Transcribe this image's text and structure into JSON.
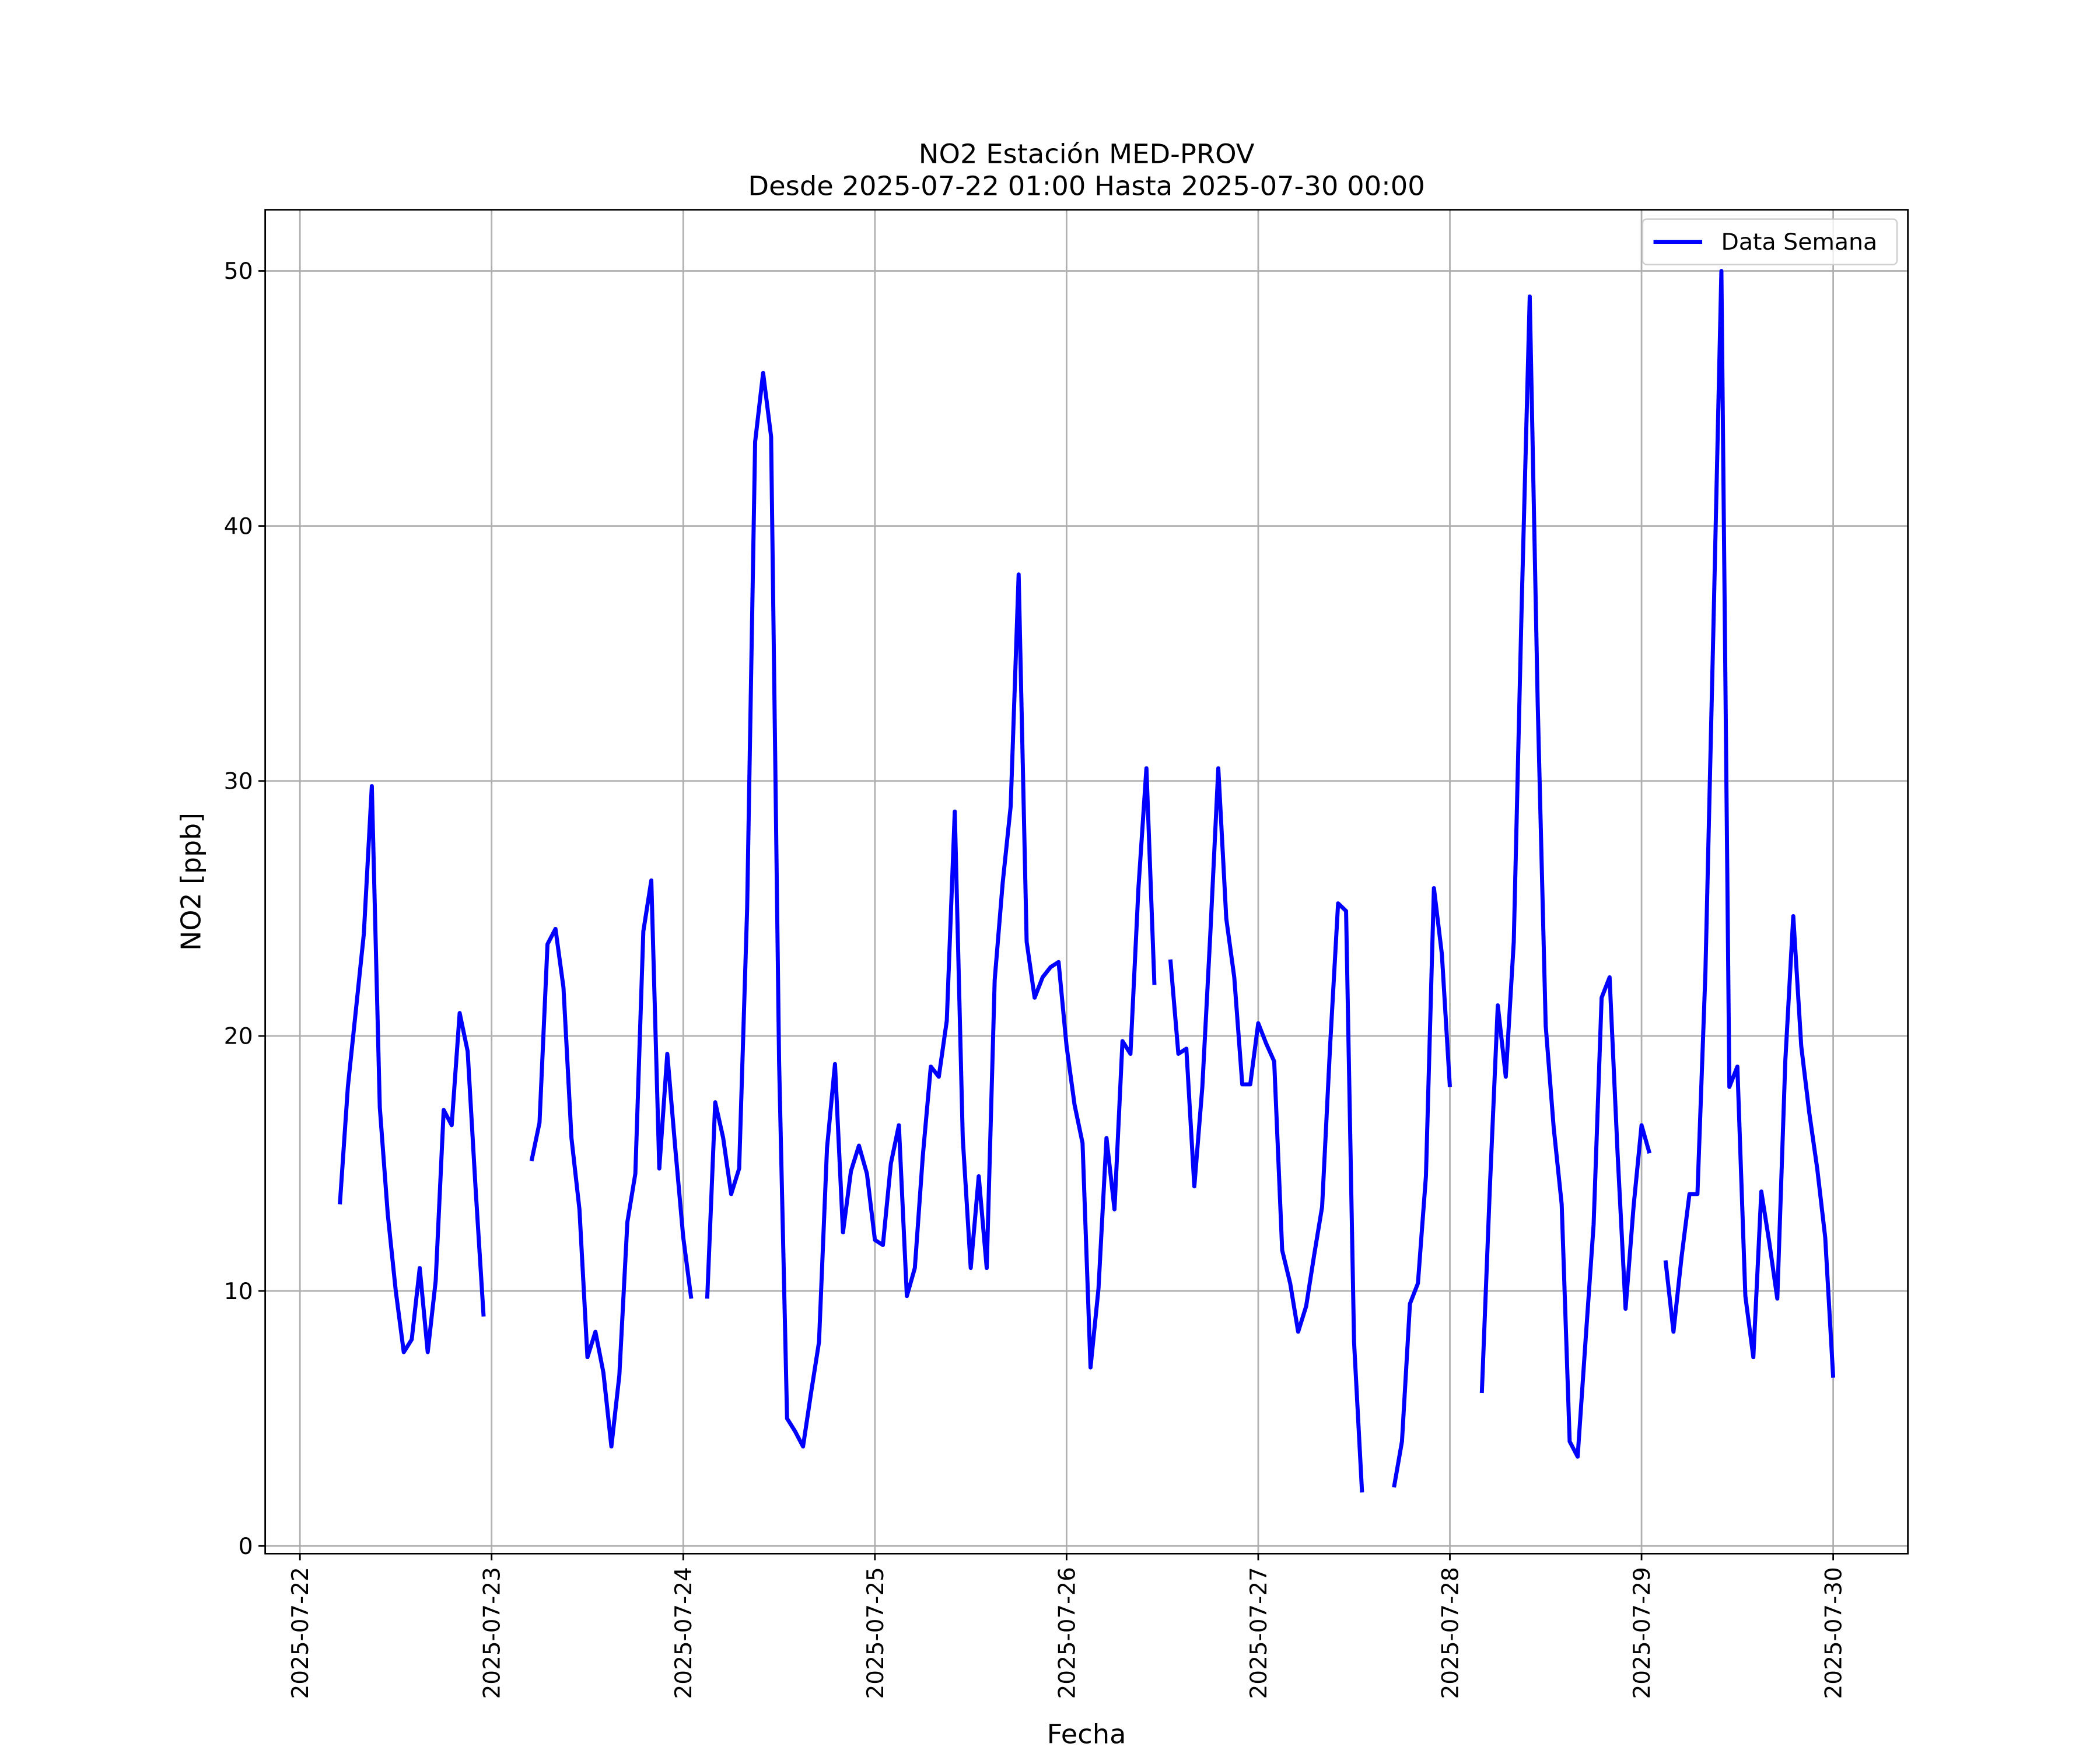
{
  "chart_data": {
    "type": "line",
    "title": "NO2 Estación MED-PROV",
    "subtitle": "Desde 2025-07-22 01:00 Hasta 2025-07-30 00:00",
    "x_label": "Fecha",
    "y_label": "NO2 [ppb]",
    "x": [
      "2025-07-22 05:00",
      "2025-07-22 06:00",
      "2025-07-22 07:00",
      "2025-07-22 08:00",
      "2025-07-22 09:00",
      "2025-07-22 10:00",
      "2025-07-22 11:00",
      "2025-07-22 12:00",
      "2025-07-22 13:00",
      "2025-07-22 14:00",
      "2025-07-22 15:00",
      "2025-07-22 16:00",
      "2025-07-22 17:00",
      "2025-07-22 18:00",
      "2025-07-22 19:00",
      "2025-07-22 20:00",
      "2025-07-22 21:00",
      "2025-07-22 22:00",
      "2025-07-22 23:00",
      "2025-07-23 00:00",
      "2025-07-23 01:00",
      "2025-07-23 02:00",
      "2025-07-23 03:00",
      "2025-07-23 04:00",
      "2025-07-23 05:00",
      "2025-07-23 06:00",
      "2025-07-23 07:00",
      "2025-07-23 08:00",
      "2025-07-23 09:00",
      "2025-07-23 10:00",
      "2025-07-23 11:00",
      "2025-07-23 12:00",
      "2025-07-23 13:00",
      "2025-07-23 14:00",
      "2025-07-23 15:00",
      "2025-07-23 16:00",
      "2025-07-23 17:00",
      "2025-07-23 18:00",
      "2025-07-23 19:00",
      "2025-07-23 20:00",
      "2025-07-23 21:00",
      "2025-07-23 22:00",
      "2025-07-23 23:00",
      "2025-07-24 00:00",
      "2025-07-24 01:00",
      "2025-07-24 02:00",
      "2025-07-24 03:00",
      "2025-07-24 04:00",
      "2025-07-24 05:00",
      "2025-07-24 06:00",
      "2025-07-24 07:00",
      "2025-07-24 08:00",
      "2025-07-24 09:00",
      "2025-07-24 10:00",
      "2025-07-24 11:00",
      "2025-07-24 12:00",
      "2025-07-24 13:00",
      "2025-07-24 14:00",
      "2025-07-24 15:00",
      "2025-07-24 16:00",
      "2025-07-24 17:00",
      "2025-07-24 18:00",
      "2025-07-24 19:00",
      "2025-07-24 20:00",
      "2025-07-24 21:00",
      "2025-07-24 22:00",
      "2025-07-24 23:00",
      "2025-07-25 00:00",
      "2025-07-25 01:00",
      "2025-07-25 02:00",
      "2025-07-25 03:00",
      "2025-07-25 04:00",
      "2025-07-25 05:00",
      "2025-07-25 06:00",
      "2025-07-25 07:00",
      "2025-07-25 08:00",
      "2025-07-25 09:00",
      "2025-07-25 10:00",
      "2025-07-25 11:00",
      "2025-07-25 12:00",
      "2025-07-25 13:00",
      "2025-07-25 14:00",
      "2025-07-25 15:00",
      "2025-07-25 16:00",
      "2025-07-25 17:00",
      "2025-07-25 18:00",
      "2025-07-25 19:00",
      "2025-07-25 20:00",
      "2025-07-25 21:00",
      "2025-07-25 22:00",
      "2025-07-25 23:00",
      "2025-07-26 00:00",
      "2025-07-26 01:00",
      "2025-07-26 02:00",
      "2025-07-26 03:00",
      "2025-07-26 04:00",
      "2025-07-26 05:00",
      "2025-07-26 06:00",
      "2025-07-26 07:00",
      "2025-07-26 08:00",
      "2025-07-26 09:00",
      "2025-07-26 10:00",
      "2025-07-26 11:00",
      "2025-07-26 12:00",
      "2025-07-26 13:00",
      "2025-07-26 14:00",
      "2025-07-26 15:00",
      "2025-07-26 16:00",
      "2025-07-26 17:00",
      "2025-07-26 18:00",
      "2025-07-26 19:00",
      "2025-07-26 20:00",
      "2025-07-26 21:00",
      "2025-07-26 22:00",
      "2025-07-26 23:00",
      "2025-07-27 00:00",
      "2025-07-27 01:00",
      "2025-07-27 02:00",
      "2025-07-27 03:00",
      "2025-07-27 04:00",
      "2025-07-27 05:00",
      "2025-07-27 06:00",
      "2025-07-27 07:00",
      "2025-07-27 08:00",
      "2025-07-27 09:00",
      "2025-07-27 10:00",
      "2025-07-27 11:00",
      "2025-07-27 12:00",
      "2025-07-27 13:00",
      "2025-07-27 14:00",
      "2025-07-27 15:00",
      "2025-07-27 16:00",
      "2025-07-27 17:00",
      "2025-07-27 18:00",
      "2025-07-27 19:00",
      "2025-07-27 20:00",
      "2025-07-27 21:00",
      "2025-07-27 22:00",
      "2025-07-27 23:00",
      "2025-07-28 00:00",
      "2025-07-28 01:00",
      "2025-07-28 02:00",
      "2025-07-28 03:00",
      "2025-07-28 04:00",
      "2025-07-28 05:00",
      "2025-07-28 06:00",
      "2025-07-28 07:00",
      "2025-07-28 08:00",
      "2025-07-28 09:00",
      "2025-07-28 10:00",
      "2025-07-28 11:00",
      "2025-07-28 12:00",
      "2025-07-28 13:00",
      "2025-07-28 14:00",
      "2025-07-28 15:00",
      "2025-07-28 16:00",
      "2025-07-28 17:00",
      "2025-07-28 18:00",
      "2025-07-28 19:00",
      "2025-07-28 20:00",
      "2025-07-28 21:00",
      "2025-07-28 22:00",
      "2025-07-28 23:00",
      "2025-07-29 00:00",
      "2025-07-29 01:00",
      "2025-07-29 02:00",
      "2025-07-29 03:00",
      "2025-07-29 04:00",
      "2025-07-29 05:00",
      "2025-07-29 06:00",
      "2025-07-29 07:00",
      "2025-07-29 08:00",
      "2025-07-29 09:00",
      "2025-07-29 10:00",
      "2025-07-29 11:00",
      "2025-07-29 12:00",
      "2025-07-29 13:00",
      "2025-07-29 14:00",
      "2025-07-29 15:00",
      "2025-07-29 16:00",
      "2025-07-29 17:00",
      "2025-07-29 18:00",
      "2025-07-29 19:00",
      "2025-07-29 20:00",
      "2025-07-29 21:00",
      "2025-07-29 22:00",
      "2025-07-29 23:00",
      "2025-07-30 00:00"
    ],
    "series": [
      {
        "name": "Data Semana",
        "color": "#0000ff",
        "values": [
          13.4,
          18,
          21,
          24,
          29.8,
          17.2,
          13,
          10,
          7.6,
          8.1,
          10.9,
          7.6,
          10.4,
          17.1,
          16.5,
          20.9,
          19.4,
          14,
          9,
          null,
          null,
          null,
          null,
          null,
          15.1,
          16.6,
          23.6,
          24.2,
          21.9,
          16,
          13.2,
          7.4,
          8.4,
          6.8,
          3.9,
          6.7,
          12.7,
          14.6,
          24.1,
          26.1,
          14.8,
          19.3,
          15.6,
          12.1,
          9.7,
          null,
          9.7,
          17.4,
          16,
          13.8,
          14.8,
          25,
          43.3,
          46,
          43.5,
          19,
          5,
          4.5,
          3.9,
          6,
          8,
          15.6,
          18.9,
          12.3,
          14.7,
          15.7,
          14.6,
          12,
          11.8,
          15,
          16.5,
          9.8,
          10.9,
          15.3,
          18.8,
          18.4,
          20.6,
          28.8,
          16,
          10.9,
          14.5,
          10.9,
          22.2,
          26,
          29,
          38.1,
          23.7,
          21.5,
          22.3,
          22.7,
          22.9,
          19.6,
          17.3,
          15.8,
          7,
          10.1,
          16,
          13.2,
          19.8,
          19.3,
          25.8,
          30.5,
          22,
          null,
          23,
          19.3,
          19.5,
          14.1,
          18,
          24,
          30.5,
          24.6,
          22.3,
          18.1,
          18.1,
          20.5,
          19.7,
          19,
          11.6,
          10.3,
          8.4,
          9.4,
          11.4,
          13.3,
          19.6,
          25.2,
          24.9,
          8,
          2.1,
          null,
          null,
          null,
          2.3,
          4.1,
          9.5,
          10.3,
          14.5,
          25.8,
          23.2,
          18,
          null,
          null,
          null,
          6,
          14,
          21.2,
          18.4,
          23.7,
          37,
          49,
          33,
          20.4,
          16.4,
          13.4,
          4.1,
          3.5,
          8.1,
          12.6,
          21.5,
          22.3,
          15.4,
          9.3,
          13.3,
          16.5,
          15.4,
          null,
          11.2,
          8.4,
          11.3,
          13.8,
          13.8,
          22.5,
          36,
          50,
          18,
          18.8,
          9.8,
          7.4,
          13.9,
          11.9,
          9.7,
          19,
          24.7,
          19.6,
          17,
          14.8,
          12.1,
          6.6
        ]
      }
    ],
    "xlim": [
      "2025-07-21 19:39",
      "2025-07-30 09:21"
    ],
    "xticks": [
      "2025-07-22",
      "2025-07-23",
      "2025-07-24",
      "2025-07-25",
      "2025-07-26",
      "2025-07-27",
      "2025-07-28",
      "2025-07-29",
      "2025-07-30"
    ],
    "ylim": [
      -0.3,
      52.4
    ],
    "yticks": [
      0,
      10,
      20,
      30,
      40,
      50
    ],
    "grid": true,
    "legend": "upper right"
  }
}
